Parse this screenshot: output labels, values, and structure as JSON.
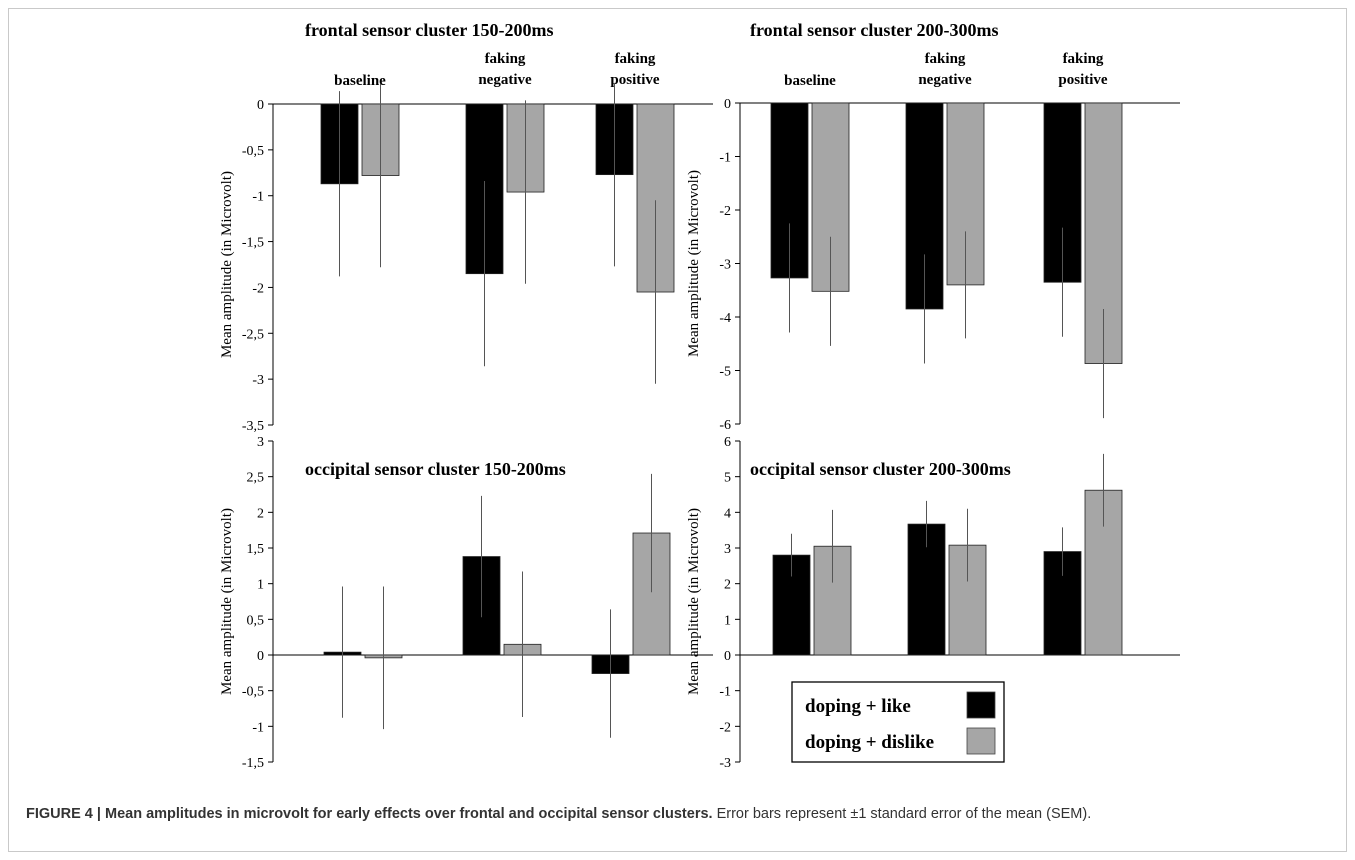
{
  "chart_data": [
    {
      "type": "bar",
      "title": "frontal sensor cluster 150-200ms",
      "ylabel": "Mean amplitude (in Microvolt)",
      "categories": [
        [
          "baseline"
        ],
        [
          "faking",
          "negative"
        ],
        [
          "faking",
          "positive"
        ]
      ],
      "yticks": [
        "0",
        "-0,5",
        "-1",
        "-1,5",
        "-2",
        "-2,5",
        "-3",
        "-3,5"
      ],
      "ylim": [
        -3.5,
        0
      ],
      "series": [
        {
          "name": "doping + like",
          "values": [
            -0.87,
            -1.85,
            -0.77
          ],
          "error": [
            1.01,
            1.01,
            1.0
          ]
        },
        {
          "name": "doping + dislike",
          "values": [
            -0.78,
            -0.96,
            -2.05
          ],
          "error": [
            1.0,
            1.0,
            1.0
          ]
        }
      ]
    },
    {
      "type": "bar",
      "title": "frontal sensor cluster 200-300ms",
      "ylabel": "Mean amplitude (in Microvolt)",
      "categories": [
        [
          "baseline"
        ],
        [
          "faking",
          "negative"
        ],
        [
          "faking",
          "positive"
        ]
      ],
      "yticks": [
        "0",
        "-1",
        "-2",
        "-3",
        "-4",
        "-5",
        "-6"
      ],
      "ylim": [
        -6,
        0
      ],
      "series": [
        {
          "name": "doping + like",
          "values": [
            -3.27,
            -3.85,
            -3.35
          ],
          "error": [
            1.02,
            1.02,
            1.02
          ]
        },
        {
          "name": "doping + dislike",
          "values": [
            -3.52,
            -3.4,
            -4.87
          ],
          "error": [
            1.02,
            1.0,
            1.02
          ]
        }
      ]
    },
    {
      "type": "bar",
      "title": "occipital sensor cluster 150-200ms",
      "ylabel": "Mean amplitude (in Microvolt)",
      "categories": [
        [],
        [],
        []
      ],
      "yticks": [
        "3",
        "2,5",
        "2",
        "1,5",
        "1",
        "0,5",
        "0",
        "-0,5",
        "-1",
        "-1,5"
      ],
      "ylim": [
        -1.5,
        3
      ],
      "series": [
        {
          "name": "doping + like",
          "values": [
            0.04,
            1.38,
            -0.26
          ],
          "error": [
            0.92,
            0.85,
            0.9
          ]
        },
        {
          "name": "doping + dislike",
          "values": [
            -0.04,
            0.15,
            1.71
          ],
          "error": [
            1.0,
            1.02,
            0.83
          ]
        }
      ]
    },
    {
      "type": "bar",
      "title": "occipital sensor cluster 200-300ms",
      "ylabel": "Mean amplitude (in Microvolt)",
      "categories": [
        [],
        [],
        []
      ],
      "yticks": [
        "6",
        "5",
        "4",
        "3",
        "2",
        "1",
        "0",
        "-1",
        "-2",
        "-3"
      ],
      "ylim": [
        -3,
        6
      ],
      "series": [
        {
          "name": "doping + like",
          "values": [
            2.8,
            3.67,
            2.9
          ],
          "error": [
            0.6,
            0.65,
            0.68
          ]
        },
        {
          "name": "doping + dislike",
          "values": [
            3.05,
            3.08,
            4.62
          ],
          "error": [
            1.02,
            1.02,
            1.02
          ]
        }
      ]
    }
  ],
  "legend": {
    "items": [
      {
        "label": "doping + like",
        "color": "#000000"
      },
      {
        "label": "doping + dislike",
        "color": "#a6a6a6"
      }
    ]
  },
  "colors": {
    "like": "#000000",
    "dislike": "#a6a6a6",
    "error_bar": "#555555"
  },
  "caption": {
    "bold": "FIGURE 4 | Mean amplitudes in microvolt for early effects over frontal and occipital sensor clusters.",
    "text": " Error bars represent ±1 standard error of the mean (SEM)."
  }
}
